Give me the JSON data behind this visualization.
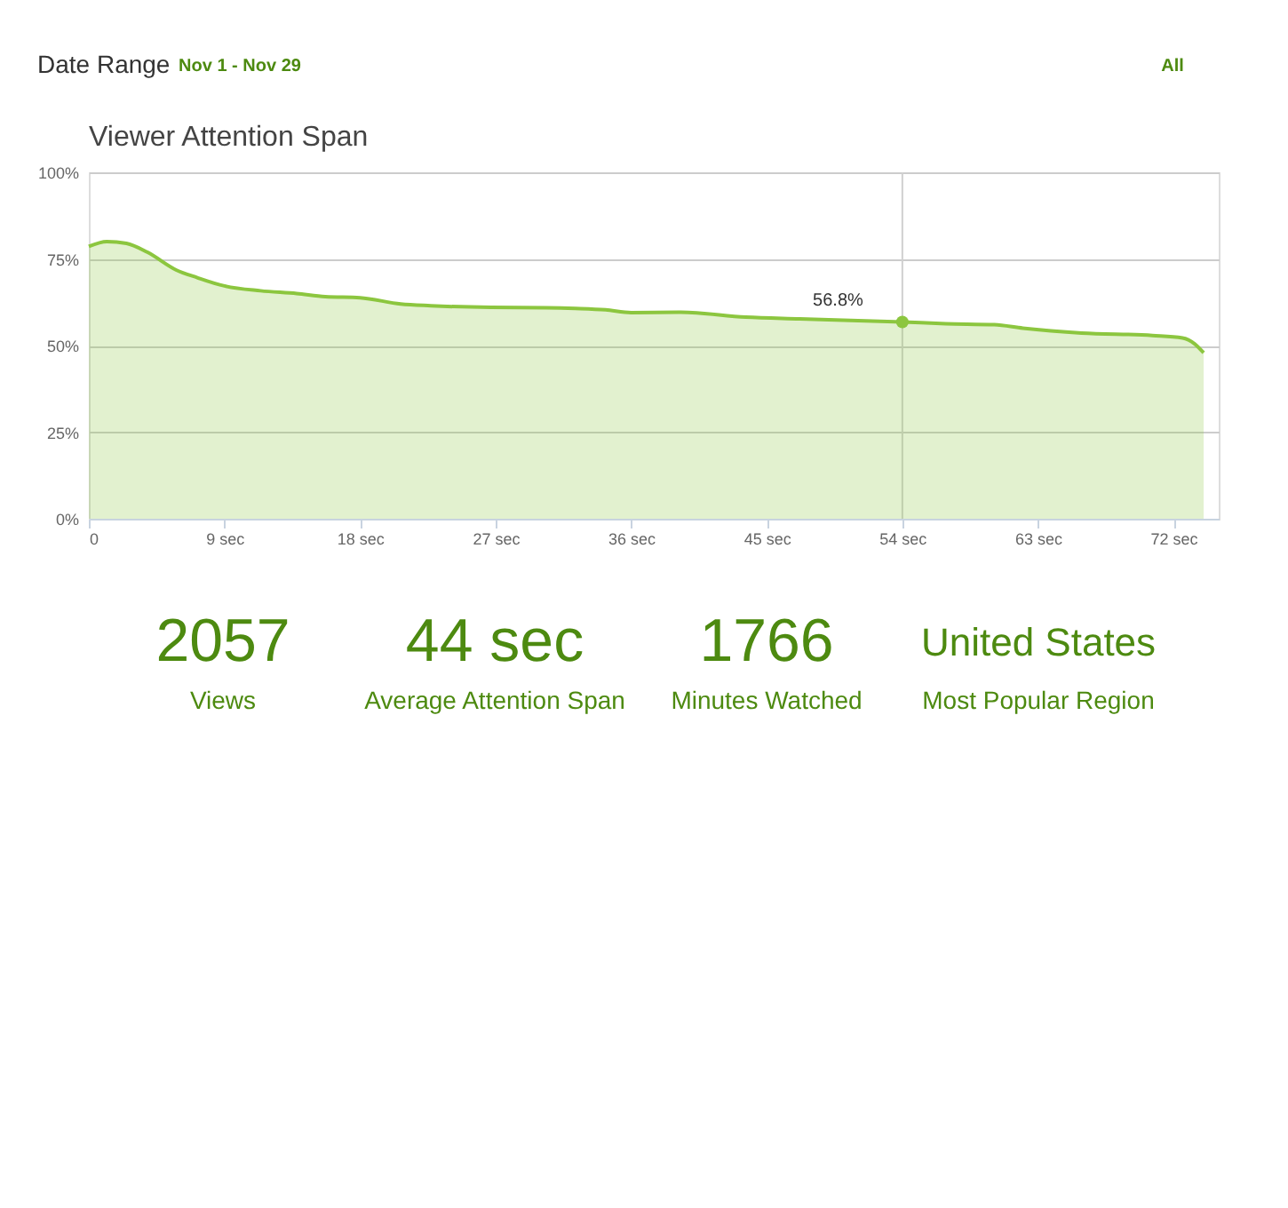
{
  "chart_data": {
    "type": "area",
    "title": "Viewer Attention Span",
    "x": [
      0,
      1.2,
      2.5,
      3.9,
      5.8,
      7.2,
      9,
      11.4,
      13.8,
      15.7,
      18,
      20.7,
      22.7,
      26.7,
      30.4,
      32.3,
      34.3,
      36,
      39.3,
      43.6,
      47.2,
      54,
      56.9,
      60.1,
      62,
      65.9,
      70.6,
      72.6,
      73.4,
      74
    ],
    "series": [
      {
        "color": "#8cc63f",
        "values": [
          78.6,
          80,
          79.5,
          76.9,
          71.8,
          69.6,
          67.2,
          65.8,
          65,
          64.1,
          63.8,
          62,
          61.5,
          61,
          60.9,
          60.7,
          60.3,
          59.5,
          59.6,
          58.2,
          57.7,
          56.8,
          56.3,
          56,
          55,
          53.6,
          52.9,
          52.2,
          50.5,
          47.9
        ]
      }
    ],
    "xlim": [
      0,
      75
    ],
    "ylim": [
      0,
      100
    ],
    "xticks": [
      0,
      {
        "value": 9,
        "label": "9 sec"
      },
      {
        "value": 18,
        "label": "18 sec"
      },
      {
        "value": 27,
        "label": "27 sec"
      },
      {
        "value": 36,
        "label": "36 sec"
      },
      {
        "value": 45,
        "label": "45 sec"
      },
      {
        "value": 54,
        "label": "54 sec"
      },
      {
        "value": 63,
        "label": "63 sec"
      },
      {
        "value": 72,
        "label": "72 sec"
      }
    ],
    "yticks": [
      {
        "value": 0,
        "label": "0%"
      },
      {
        "value": 25,
        "label": "25%"
      },
      {
        "value": 50,
        "label": "50%"
      },
      {
        "value": 75,
        "label": "75%"
      },
      {
        "value": 100,
        "label": "100%"
      }
    ],
    "grid": "y",
    "ref_lines": [
      {
        "axis": "x",
        "value": 54,
        "color": "#d0d0d0"
      }
    ],
    "annotations": [
      "Date Range",
      "Nov 1  -  Nov 29",
      "All",
      "2057",
      "Views",
      "44 sec",
      "Average Attention Span",
      "1766",
      "Minutes Watched",
      "United States",
      "Most Popular Region",
      {
        "text": "56.8%",
        "x": 54,
        "y": 56.8
      }
    ]
  }
}
